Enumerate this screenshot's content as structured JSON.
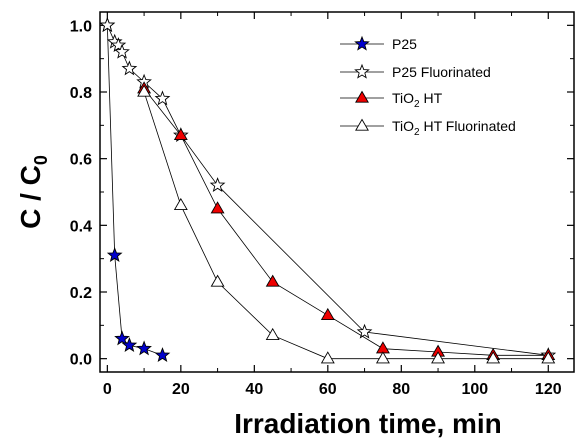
{
  "chart_data": {
    "type": "scatter",
    "title": "",
    "xlabel": "Irradiation time, min",
    "ylabel": {
      "main": "C / C",
      "sub": "0"
    },
    "xlim": [
      -2,
      127
    ],
    "ylim": [
      -0.04,
      1.04
    ],
    "xticks": [
      0,
      20,
      40,
      60,
      80,
      100,
      120
    ],
    "yticks": [
      0.0,
      0.2,
      0.4,
      0.6,
      0.8,
      1.0
    ],
    "x_tick_labels": [
      "0",
      "20",
      "40",
      "60",
      "80",
      "100",
      "120"
    ],
    "y_tick_labels": [
      "0.0",
      "0.2",
      "0.4",
      "0.6",
      "0.8",
      "1.0"
    ],
    "legend_position": "top-right",
    "series": [
      {
        "name": "P25",
        "marker": "star",
        "fill": "#0000cc",
        "line": "#000000",
        "x": [
          0,
          2,
          4,
          6,
          10,
          15
        ],
        "y": [
          1.0,
          0.31,
          0.06,
          0.04,
          0.03,
          0.01
        ]
      },
      {
        "name": "P25 Fluorinated",
        "marker": "star",
        "fill": "#ffffff",
        "line": "#000000",
        "x": [
          0,
          2,
          3,
          4,
          6,
          10,
          15,
          20,
          30,
          70,
          120
        ],
        "y": [
          1.0,
          0.95,
          0.94,
          0.92,
          0.87,
          0.83,
          0.78,
          0.67,
          0.52,
          0.08,
          0.01
        ]
      },
      {
        "name": "TiO2 HT",
        "legend": {
          "pre": "TiO",
          "sub": "2",
          "post": " HT"
        },
        "marker": "triangle",
        "fill": "#ee0000",
        "line": "#000000",
        "x": [
          10,
          20,
          30,
          45,
          60,
          75,
          90,
          105,
          120
        ],
        "y": [
          0.81,
          0.67,
          0.45,
          0.23,
          0.13,
          0.03,
          0.02,
          0.01,
          0.01
        ]
      },
      {
        "name": "TiO2 HT Fluorinated",
        "legend": {
          "pre": "TiO",
          "sub": "2",
          "post": " HT Fluorinated"
        },
        "marker": "triangle",
        "fill": "#ffffff",
        "line": "#000000",
        "x": [
          10,
          20,
          30,
          45,
          60,
          75,
          90,
          105,
          120
        ],
        "y": [
          0.8,
          0.46,
          0.23,
          0.07,
          0.0,
          0.0,
          0.0,
          0.0,
          0.0
        ]
      }
    ]
  }
}
